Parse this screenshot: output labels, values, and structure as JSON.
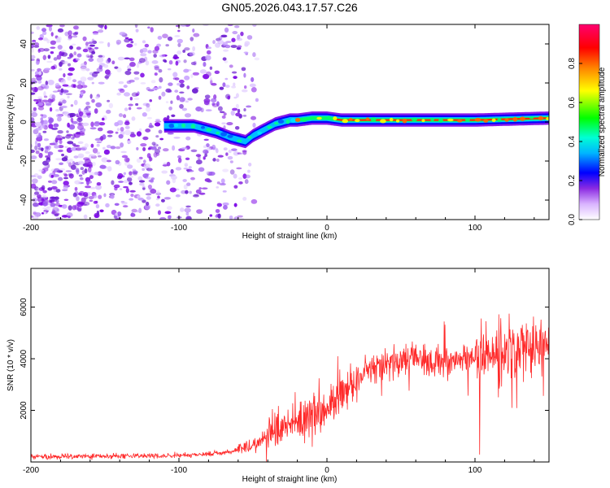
{
  "title": "GN05.2026.043.17.57.C26",
  "chart_data": [
    {
      "type": "heatmap",
      "name": "spectrogram",
      "xlabel": "Height of straight line (km)",
      "ylabel": "Frequency (Hz)",
      "xlim": [
        -200,
        150
      ],
      "ylim": [
        -50,
        50
      ],
      "xticks": [
        -200,
        -100,
        0,
        100
      ],
      "yticks": [
        -40,
        -20,
        0,
        20,
        40
      ],
      "xtick_labels": [
        "-200",
        "-100",
        "0",
        "100"
      ],
      "ytick_labels": [
        "-40",
        "-20",
        "0",
        "20",
        "40"
      ],
      "colorbar": {
        "label": "Normalized spectral amplitude",
        "range": [
          0,
          1
        ],
        "ticks": [
          0.0,
          0.2,
          0.4,
          0.6,
          0.8
        ],
        "tick_labels": [
          "0.0",
          "0.2",
          "0.4",
          "0.6",
          "0.8"
        ],
        "colormap": [
          "#ffffff",
          "#b48cff",
          "#7a00e6",
          "#0000ff",
          "#00e5ff",
          "#00ff00",
          "#ffff00",
          "#ff8000",
          "#ff0000",
          "#ff0070"
        ]
      },
      "ridge": {
        "x": [
          -110,
          -100,
          -90,
          -85,
          -75,
          -65,
          -55,
          -50,
          -45,
          -40,
          -35,
          -30,
          -25,
          -20,
          -10,
          0,
          10,
          50,
          100,
          150
        ],
        "freq": [
          -2,
          -2,
          -2,
          -3,
          -5,
          -8,
          -10,
          -7,
          -5,
          -3,
          -1,
          0,
          1,
          1,
          2,
          2,
          1,
          1,
          1,
          2
        ]
      },
      "noise_region_x": [
        -200,
        -55
      ]
    },
    {
      "type": "line",
      "name": "snr",
      "xlabel": "Height of straight line (km)",
      "ylabel": "SNR (10 * v/v)",
      "xlim": [
        -200,
        150
      ],
      "ylim": [
        0,
        7500
      ],
      "xticks": [
        -200,
        -100,
        0,
        100
      ],
      "yticks": [
        2000,
        4000,
        6000
      ],
      "xtick_labels": [
        "-200",
        "-100",
        "0",
        "100"
      ],
      "ytick_labels": [
        "2000",
        "4000",
        "6000"
      ],
      "series": [
        {
          "name": "SNR",
          "color": "#ff2a2a",
          "trend_x": [
            -200,
            -100,
            -70,
            -50,
            -40,
            -30,
            -20,
            -10,
            0,
            10,
            20,
            30,
            40,
            60,
            80,
            100,
            120,
            130,
            140,
            150
          ],
          "trend_y": [
            200,
            250,
            350,
            600,
            1000,
            1300,
            1600,
            1800,
            2100,
            2600,
            3200,
            3600,
            3800,
            4000,
            3900,
            4100,
            4200,
            4300,
            4400,
            4600
          ]
        }
      ]
    }
  ]
}
